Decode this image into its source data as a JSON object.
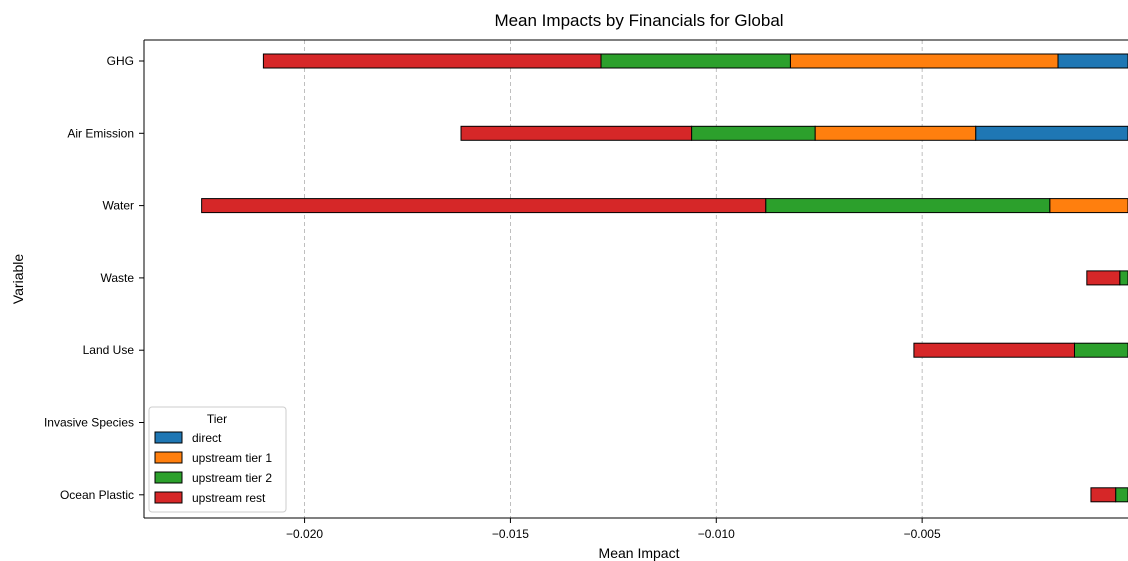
{
  "chart_data": {
    "type": "bar",
    "orientation": "horizontal",
    "stacked": true,
    "title": "Mean Impacts by Financials for Global",
    "xlabel": "Mean Impact",
    "ylabel": "Variable",
    "categories": [
      "GHG",
      "Air Emission",
      "Water",
      "Waste",
      "Land Use",
      "Invasive Species",
      "Ocean Plastic"
    ],
    "xlim": [
      -0.0239,
      0.0
    ],
    "xticks": [
      -0.02,
      -0.015,
      -0.01,
      -0.005
    ],
    "xtick_labels": [
      "−0.020",
      "−0.015",
      "−0.010",
      "−0.005"
    ],
    "grid": "x-dashed",
    "legend": {
      "title": "Tier",
      "placement": "lower-left"
    },
    "series": [
      {
        "name": "direct",
        "color": "#1f77b4",
        "values": [
          -0.0017,
          -0.0037,
          0.0,
          0.0,
          0.0,
          0.0,
          0.0
        ]
      },
      {
        "name": "upstream tier 1",
        "color": "#ff7f0e",
        "values": [
          -0.0065,
          -0.0039,
          -0.0019,
          0.0,
          0.0,
          0.0,
          0.0
        ]
      },
      {
        "name": "upstream tier 2",
        "color": "#2ca02c",
        "values": [
          -0.0046,
          -0.003,
          -0.0069,
          -0.0002,
          -0.0013,
          0.0,
          -0.0003
        ]
      },
      {
        "name": "upstream rest",
        "color": "#d62728",
        "values": [
          -0.0082,
          -0.0056,
          -0.0137,
          -0.0008,
          -0.0039,
          0.0,
          -0.0006
        ]
      }
    ]
  }
}
